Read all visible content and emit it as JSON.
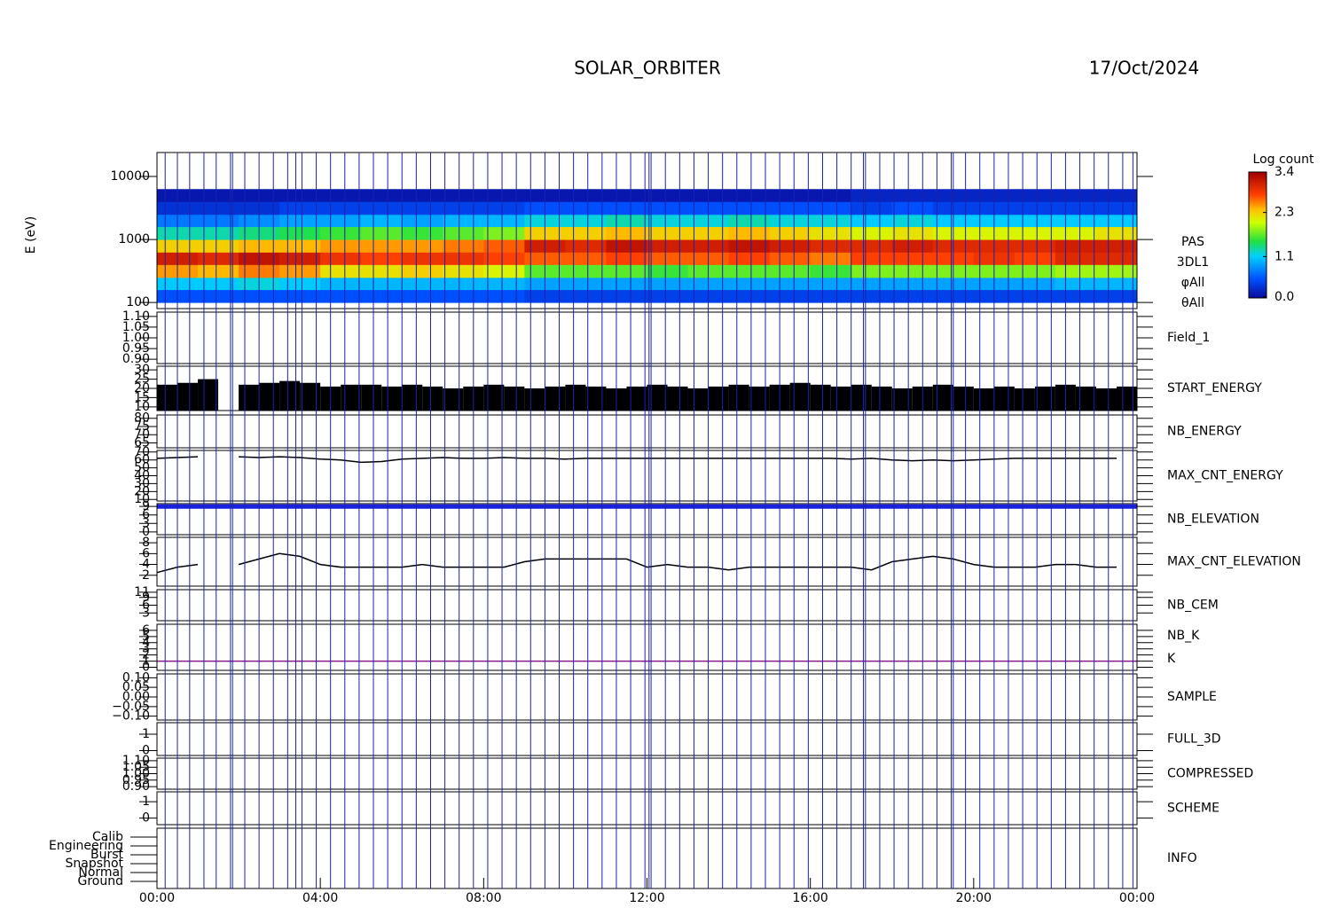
{
  "chart_data": [
    {
      "type": "heatmap",
      "title": "SOLAR_ORBITER",
      "subtitle": "17/Oct/2024",
      "y_label": "E (eV)",
      "log_y": true,
      "ylim": [
        80,
        24000
      ],
      "yticks": [
        100,
        1000,
        10000
      ],
      "xlim": [
        0,
        24
      ],
      "xticks": [
        {
          "value": 0,
          "label": "00:00"
        },
        {
          "value": 4,
          "label": "04:00"
        },
        {
          "value": 8,
          "label": "08:00"
        },
        {
          "value": 12,
          "label": "12:00"
        },
        {
          "value": 16,
          "label": "16:00"
        },
        {
          "value": 20,
          "label": "20:00"
        },
        {
          "value": 24,
          "label": "00:00"
        }
      ],
      "x_markers": [
        0.2,
        0.5,
        0.8,
        1.15,
        1.45,
        1.8,
        1.85,
        2.15,
        2.5,
        2.85,
        3.2,
        3.4,
        3.55,
        3.9,
        4.25,
        4.6,
        4.95,
        5.3,
        5.65,
        6.0,
        6.35,
        6.7,
        7.05,
        7.4,
        7.75,
        8.1,
        8.45,
        8.8,
        9.15,
        9.5,
        9.85,
        10.2,
        10.55,
        10.9,
        11.25,
        11.6,
        11.95,
        12.05,
        12.1,
        12.45,
        12.8,
        13.15,
        13.5,
        13.85,
        14.2,
        14.55,
        14.9,
        15.25,
        15.6,
        15.95,
        16.3,
        16.65,
        17.0,
        17.3,
        17.35,
        17.7,
        18.05,
        18.4,
        18.75,
        19.1,
        19.45,
        19.5,
        19.8,
        20.15,
        20.5,
        20.85,
        21.2,
        21.55,
        21.9,
        22.25,
        22.6,
        22.95,
        23.3,
        23.65,
        23.9
      ],
      "marker_color": "#1a22b0",
      "labels": [
        "PAS",
        "3DL1",
        "φAll",
        "θAll"
      ],
      "label_colors": [
        "#000000",
        "#000000",
        "#000000",
        "#000000"
      ],
      "colorbar_title": "Log count",
      "zlim": [
        0,
        3.4
      ],
      "zticks": [
        {
          "value": 0,
          "label": "0.0"
        },
        {
          "value": 1.1,
          "label": "1.1"
        },
        {
          "value": 2.3,
          "label": "2.3"
        },
        {
          "value": 3.4,
          "label": "3.4"
        }
      ],
      "x_edges": [
        0,
        1,
        2,
        3,
        4,
        5,
        6,
        7,
        8,
        9,
        10,
        11,
        12,
        13,
        14,
        15,
        16,
        17,
        18,
        19,
        20,
        21,
        22,
        23,
        24
      ],
      "y_edges": [
        100,
        160,
        250,
        400,
        630,
        1000,
        1600,
        2500,
        4000,
        6300,
        10000
      ],
      "z": [
        [
          0.5,
          1.1,
          2.5,
          3.1,
          2.3,
          1.3,
          0.7,
          0.3,
          0.1,
          null
        ],
        [
          0.5,
          1.1,
          2.4,
          3.0,
          2.3,
          1.3,
          0.7,
          0.3,
          0.1,
          null
        ],
        [
          0.5,
          1.2,
          2.6,
          3.2,
          2.4,
          1.4,
          0.8,
          0.3,
          0.1,
          null
        ],
        [
          0.5,
          1.1,
          2.5,
          3.1,
          2.4,
          1.5,
          0.9,
          0.4,
          0.1,
          null
        ],
        [
          0.5,
          1.0,
          2.2,
          2.9,
          2.5,
          1.6,
          0.9,
          0.4,
          0.1,
          null
        ],
        [
          0.5,
          1.0,
          2.2,
          2.8,
          2.5,
          1.7,
          1.0,
          0.4,
          0.1,
          null
        ],
        [
          0.5,
          1.0,
          2.3,
          2.9,
          2.5,
          1.6,
          0.9,
          0.4,
          0.1,
          null
        ],
        [
          0.5,
          1.0,
          2.2,
          2.9,
          2.6,
          1.7,
          1.0,
          0.4,
          0.1,
          null
        ],
        [
          0.5,
          1.0,
          2.1,
          2.8,
          2.7,
          1.8,
          1.0,
          0.4,
          0.1,
          null
        ],
        [
          0.4,
          0.9,
          1.7,
          2.7,
          3.1,
          2.3,
          1.2,
          0.5,
          0.1,
          null
        ],
        [
          0.4,
          0.9,
          1.7,
          2.7,
          3.0,
          2.3,
          1.2,
          0.5,
          0.1,
          null
        ],
        [
          0.4,
          0.9,
          1.7,
          2.8,
          3.2,
          2.4,
          1.3,
          0.5,
          0.1,
          null
        ],
        [
          0.4,
          0.9,
          1.6,
          2.7,
          3.1,
          2.3,
          1.2,
          0.5,
          0.1,
          null
        ],
        [
          0.4,
          0.9,
          1.7,
          2.7,
          3.1,
          2.3,
          1.2,
          0.5,
          0.1,
          null
        ],
        [
          0.4,
          0.9,
          1.7,
          2.8,
          3.2,
          2.4,
          1.3,
          0.5,
          0.1,
          null
        ],
        [
          0.4,
          0.9,
          1.7,
          2.7,
          3.1,
          2.3,
          1.2,
          0.5,
          0.1,
          null
        ],
        [
          0.4,
          0.9,
          1.6,
          2.6,
          3.0,
          2.2,
          1.2,
          0.5,
          0.1,
          null
        ],
        [
          0.4,
          0.9,
          1.8,
          2.8,
          3.0,
          2.1,
          1.1,
          0.4,
          0.2,
          null
        ],
        [
          0.4,
          0.9,
          1.8,
          2.8,
          3.1,
          2.2,
          1.2,
          0.5,
          0.2,
          null
        ],
        [
          0.4,
          0.9,
          1.8,
          2.8,
          3.0,
          2.1,
          1.1,
          0.4,
          0.2,
          null
        ],
        [
          0.4,
          0.9,
          1.8,
          2.9,
          3.0,
          2.1,
          1.1,
          0.4,
          0.2,
          null
        ],
        [
          0.4,
          0.9,
          1.8,
          2.8,
          3.0,
          2.1,
          1.1,
          0.4,
          0.2,
          null
        ],
        [
          0.4,
          1.0,
          1.9,
          3.0,
          3.1,
          2.1,
          1.1,
          0.4,
          0.2,
          null
        ],
        [
          0.4,
          1.0,
          1.9,
          3.0,
          3.1,
          2.2,
          1.1,
          0.4,
          0.2,
          null
        ]
      ]
    },
    {
      "type": "line",
      "labels": [
        "Field_1"
      ],
      "label_colors": [
        "#1a22b0"
      ],
      "ylim": [
        0.88,
        1.12
      ],
      "yticks": [
        {
          "value": 0.9,
          "label": "0.90"
        },
        {
          "value": 0.95,
          "label": "0.95"
        },
        {
          "value": 1.0,
          "label": "1.00"
        },
        {
          "value": 1.05,
          "label": "1.05"
        },
        {
          "value": 1.1,
          "label": "1.10"
        }
      ]
    },
    {
      "type": "bar",
      "labels": [
        "START_ENERGY"
      ],
      "label_colors": [
        "#000000"
      ],
      "ylim": [
        8,
        32
      ],
      "yticks": [
        10,
        15,
        20,
        25,
        30
      ],
      "series": [
        {
          "color": "#000000",
          "x": [
            0,
            0.5,
            1,
            1.5,
            2,
            2.5,
            3,
            3.5,
            4,
            4.5,
            5,
            5.5,
            6,
            6.5,
            7,
            7.5,
            8,
            8.5,
            9,
            9.5,
            10,
            10.5,
            11,
            11.5,
            12,
            12.5,
            13,
            13.5,
            14,
            14.5,
            15,
            15.5,
            16,
            16.5,
            17,
            17.5,
            18,
            18.5,
            19,
            19.5,
            20,
            20.5,
            21,
            21.5,
            22,
            22.5,
            23,
            23.5
          ],
          "values": [
            22,
            23,
            25,
            null,
            22,
            23,
            24,
            23,
            21,
            22,
            22,
            21,
            22,
            21,
            20,
            21,
            22,
            21,
            20,
            21,
            22,
            21,
            20,
            21,
            22,
            21,
            20,
            21,
            22,
            21,
            22,
            23,
            22,
            21,
            22,
            21,
            20,
            21,
            22,
            21,
            20,
            21,
            20,
            21,
            22,
            21,
            20,
            21
          ]
        }
      ]
    },
    {
      "type": "line",
      "labels": [
        "NB_ENERGY"
      ],
      "label_colors": [
        "#1a22b0"
      ],
      "ylim": [
        62,
        82
      ],
      "yticks": [
        65,
        70,
        75,
        80
      ]
    },
    {
      "type": "line",
      "labels": [
        "MAX_CNT_ENERGY"
      ],
      "label_colors": [
        "#000000"
      ],
      "ylim": [
        8,
        72
      ],
      "yticks": [
        10,
        20,
        30,
        40,
        50,
        60,
        70
      ],
      "series": [
        {
          "color": "#000000",
          "x": [
            0,
            0.5,
            1,
            1.5,
            2,
            2.5,
            3,
            3.5,
            4,
            4.5,
            5,
            5.5,
            6,
            6.5,
            7,
            7.5,
            8,
            8.5,
            9,
            9.5,
            10,
            10.5,
            11,
            11.5,
            12,
            12.5,
            13,
            13.5,
            14,
            14.5,
            15,
            15.5,
            16,
            16.5,
            17,
            17.5,
            18,
            18.5,
            19,
            19.5,
            20,
            20.5,
            21,
            21.5,
            22,
            22.5,
            23,
            23.5
          ],
          "values": [
            62,
            63,
            64,
            null,
            64,
            63,
            64,
            63,
            61,
            60,
            57,
            58,
            61,
            62,
            63,
            62,
            62,
            63,
            62,
            62,
            61,
            62,
            62,
            62,
            62,
            62,
            62,
            62,
            62,
            62,
            62,
            62,
            62,
            62,
            61,
            62,
            60,
            59,
            60,
            59,
            60,
            61,
            62,
            62,
            62,
            62,
            62,
            62
          ]
        }
      ]
    },
    {
      "type": "line",
      "labels": [
        "NB_ELEVATION"
      ],
      "label_colors": [
        "#1a22b0"
      ],
      "ylim": [
        -1,
        10
      ],
      "yticks": [
        0,
        3,
        6,
        9
      ],
      "series": [
        {
          "color": "#1a22e0",
          "x": [
            0,
            1.45,
            1.85,
            24
          ],
          "values": [
            9,
            9,
            9,
            9
          ]
        }
      ]
    },
    {
      "type": "line",
      "labels": [
        "MAX_CNT_ELEVATION"
      ],
      "label_colors": [
        "#000000"
      ],
      "ylim": [
        0,
        9
      ],
      "yticks": [
        2,
        4,
        6,
        8
      ],
      "series": [
        {
          "color": "#000000",
          "x": [
            0,
            0.5,
            1,
            1.5,
            2,
            2.5,
            3,
            3.5,
            4,
            4.5,
            5,
            5.5,
            6,
            6.5,
            7,
            7.5,
            8,
            8.5,
            9,
            9.5,
            10,
            10.5,
            11,
            11.5,
            12,
            12.5,
            13,
            13.5,
            14,
            14.5,
            15,
            15.5,
            16,
            16.5,
            17,
            17.5,
            18,
            18.5,
            19,
            19.5,
            20,
            20.5,
            21,
            21.5,
            22,
            22.5,
            23,
            23.5
          ],
          "values": [
            2.5,
            3.5,
            4,
            null,
            4,
            5,
            6,
            5.5,
            4,
            3.5,
            3.5,
            3.5,
            3.5,
            4,
            3.5,
            3.5,
            3.5,
            3.5,
            4.5,
            5,
            5,
            5,
            5,
            5,
            3.5,
            4,
            3.5,
            3.5,
            3,
            3.5,
            3.5,
            3.5,
            3.5,
            3.5,
            3.5,
            3,
            4.5,
            5,
            5.5,
            5,
            4,
            3.5,
            3.5,
            3.5,
            4,
            4,
            3.5,
            3.5
          ]
        }
      ]
    },
    {
      "type": "line",
      "labels": [
        "NB_CEM"
      ],
      "label_colors": [
        "#1a22b0"
      ],
      "ylim": [
        0,
        12
      ],
      "yticks": [
        3,
        6,
        9,
        11
      ]
    },
    {
      "type": "line",
      "labels": [
        "NB_K",
        "K"
      ],
      "label_colors": [
        "#c02020",
        "#1a22b0"
      ],
      "ylim": [
        -0.5,
        7
      ],
      "yticks": [
        0,
        1,
        2,
        3,
        4,
        5,
        6
      ],
      "series": [
        {
          "color": "#8a1a8a",
          "x": [
            0,
            24
          ],
          "values": [
            1,
            1
          ]
        }
      ]
    },
    {
      "type": "line",
      "labels": [
        "SAMPLE"
      ],
      "label_colors": [
        "#1a22b0"
      ],
      "ylim": [
        -0.12,
        0.12
      ],
      "yticks": [
        {
          "value": -0.1,
          "label": "−0.10"
        },
        {
          "value": -0.05,
          "label": "−0.05"
        },
        {
          "value": 0,
          "label": "0.00"
        },
        {
          "value": 0.05,
          "label": "0.05"
        },
        {
          "value": 0.1,
          "label": "0.10"
        }
      ]
    },
    {
      "type": "line",
      "labels": [
        "FULL_3D"
      ],
      "label_colors": [
        "#1a22b0"
      ],
      "ylim": [
        -0.3,
        1.7
      ],
      "yticks": [
        0,
        1
      ]
    },
    {
      "type": "line",
      "labels": [
        "COMPRESSED"
      ],
      "label_colors": [
        "#000000"
      ],
      "ylim": [
        0.88,
        1.12
      ],
      "yticks": [
        {
          "value": 0.9,
          "label": "0.90"
        },
        {
          "value": 0.95,
          "label": "0.95"
        },
        {
          "value": 1.0,
          "label": "1.00"
        },
        {
          "value": 1.05,
          "label": "1.05"
        },
        {
          "value": 1.1,
          "label": "1.10"
        }
      ]
    },
    {
      "type": "line",
      "labels": [
        "SCHEME"
      ],
      "label_colors": [
        "#000000"
      ],
      "ylim": [
        -0.4,
        1.6
      ],
      "yticks": [
        0,
        1
      ]
    },
    {
      "type": "category",
      "labels": [
        "INFO"
      ],
      "label_colors": [
        "#000000"
      ],
      "categories": [
        "Calib",
        "Engineering",
        "Burst",
        "Snapshot",
        "Normal",
        "Ground"
      ]
    }
  ]
}
